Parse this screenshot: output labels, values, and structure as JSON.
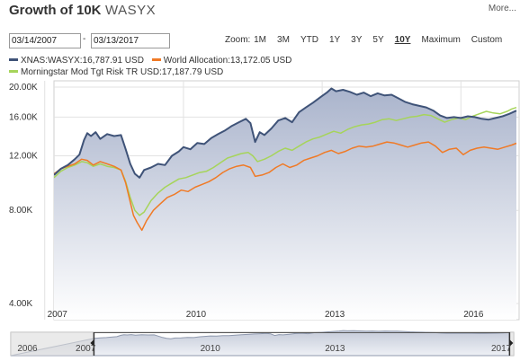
{
  "header": {
    "title": "Growth of 10K",
    "ticker": "WASYX",
    "more_label": "More..."
  },
  "controls": {
    "start_date": "03/14/2007",
    "end_date": "03/13/2017",
    "separator": "-",
    "zoom_label": "Zoom:",
    "zoom_options": [
      "1M",
      "3M",
      "YTD",
      "1Y",
      "3Y",
      "5Y",
      "10Y",
      "Maximum",
      "Custom"
    ],
    "active_zoom": "10Y"
  },
  "colors": {
    "wasyx": "#3f5378",
    "world_allocation": "#f07a26",
    "morningstar": "#a6d45a",
    "area_top": "#aab4cc",
    "area_bottom": "#ffffff",
    "grid": "#e2e2e2"
  },
  "chart_data": {
    "type": "line",
    "legend": [
      "XNAS:WASYX:16,787.91 USD",
      "World Allocation:13,172.05 USD",
      "Morningstar Mod Tgt Risk TR USD:17,187.79 USD"
    ],
    "y_ticks": [
      "20.00K",
      "16.00K",
      "12.00K",
      "8.00K",
      "4.00K"
    ],
    "y_tick_values": [
      20000,
      16000,
      12000,
      8000,
      4000
    ],
    "x_ticks": [
      "2007",
      "2010",
      "2013",
      "2016"
    ],
    "x_tick_values": [
      2007.0,
      2010.0,
      2013.0,
      2016.0
    ],
    "xlim": [
      2007.2,
      2017.2
    ],
    "ylim": [
      4000,
      20000
    ],
    "y_scale": "log",
    "grid": true,
    "series": [
      {
        "name": "XNAS:WASYX",
        "points": [
          [
            2007.2,
            10400
          ],
          [
            2007.35,
            10900
          ],
          [
            2007.5,
            11200
          ],
          [
            2007.65,
            11700
          ],
          [
            2007.75,
            12100
          ],
          [
            2007.85,
            13500
          ],
          [
            2007.92,
            14200
          ],
          [
            2008.0,
            13900
          ],
          [
            2008.1,
            14300
          ],
          [
            2008.2,
            13600
          ],
          [
            2008.35,
            14100
          ],
          [
            2008.5,
            13900
          ],
          [
            2008.65,
            14000
          ],
          [
            2008.75,
            12600
          ],
          [
            2008.85,
            11300
          ],
          [
            2008.95,
            10500
          ],
          [
            2009.05,
            10200
          ],
          [
            2009.15,
            10800
          ],
          [
            2009.3,
            11000
          ],
          [
            2009.45,
            11300
          ],
          [
            2009.6,
            11200
          ],
          [
            2009.75,
            12000
          ],
          [
            2009.9,
            12400
          ],
          [
            2010.0,
            12800
          ],
          [
            2010.15,
            12600
          ],
          [
            2010.3,
            13200
          ],
          [
            2010.45,
            13100
          ],
          [
            2010.6,
            13700
          ],
          [
            2010.75,
            14100
          ],
          [
            2010.9,
            14500
          ],
          [
            2011.05,
            15000
          ],
          [
            2011.2,
            15400
          ],
          [
            2011.35,
            15800
          ],
          [
            2011.45,
            15300
          ],
          [
            2011.55,
            13300
          ],
          [
            2011.65,
            14300
          ],
          [
            2011.75,
            14000
          ],
          [
            2011.9,
            14700
          ],
          [
            2012.05,
            15600
          ],
          [
            2012.2,
            15900
          ],
          [
            2012.35,
            15400
          ],
          [
            2012.5,
            16600
          ],
          [
            2012.65,
            17200
          ],
          [
            2012.8,
            17800
          ],
          [
            2012.95,
            18500
          ],
          [
            2013.1,
            19200
          ],
          [
            2013.2,
            19800
          ],
          [
            2013.3,
            19400
          ],
          [
            2013.45,
            19600
          ],
          [
            2013.6,
            19300
          ],
          [
            2013.75,
            18900
          ],
          [
            2013.9,
            19200
          ],
          [
            2014.05,
            18700
          ],
          [
            2014.2,
            19100
          ],
          [
            2014.35,
            18800
          ],
          [
            2014.5,
            18900
          ],
          [
            2014.65,
            18400
          ],
          [
            2014.8,
            17900
          ],
          [
            2014.95,
            17600
          ],
          [
            2015.1,
            17400
          ],
          [
            2015.25,
            17200
          ],
          [
            2015.4,
            16800
          ],
          [
            2015.55,
            16200
          ],
          [
            2015.7,
            15900
          ],
          [
            2015.85,
            16000
          ],
          [
            2016.0,
            15900
          ],
          [
            2016.15,
            16100
          ],
          [
            2016.3,
            16000
          ],
          [
            2016.45,
            15800
          ],
          [
            2016.6,
            15700
          ],
          [
            2016.75,
            15900
          ],
          [
            2016.9,
            16100
          ],
          [
            2017.05,
            16400
          ],
          [
            2017.2,
            16790
          ]
        ]
      },
      {
        "name": "World Allocation",
        "points": [
          [
            2007.2,
            10500
          ],
          [
            2007.35,
            10900
          ],
          [
            2007.5,
            11100
          ],
          [
            2007.65,
            11300
          ],
          [
            2007.8,
            11700
          ],
          [
            2007.92,
            11600
          ],
          [
            2008.05,
            11200
          ],
          [
            2008.2,
            11500
          ],
          [
            2008.35,
            11300
          ],
          [
            2008.5,
            11100
          ],
          [
            2008.65,
            10800
          ],
          [
            2008.75,
            9800
          ],
          [
            2008.85,
            8500
          ],
          [
            2008.92,
            7700
          ],
          [
            2009.0,
            7300
          ],
          [
            2009.1,
            6900
          ],
          [
            2009.2,
            7400
          ],
          [
            2009.35,
            8000
          ],
          [
            2009.5,
            8400
          ],
          [
            2009.65,
            8800
          ],
          [
            2009.8,
            9000
          ],
          [
            2009.95,
            9300
          ],
          [
            2010.1,
            9200
          ],
          [
            2010.25,
            9500
          ],
          [
            2010.4,
            9700
          ],
          [
            2010.55,
            9900
          ],
          [
            2010.7,
            10200
          ],
          [
            2010.85,
            10600
          ],
          [
            2011.0,
            10900
          ],
          [
            2011.15,
            11100
          ],
          [
            2011.3,
            11200
          ],
          [
            2011.45,
            11000
          ],
          [
            2011.55,
            10300
          ],
          [
            2011.7,
            10400
          ],
          [
            2011.85,
            10600
          ],
          [
            2012.0,
            11000
          ],
          [
            2012.15,
            11300
          ],
          [
            2012.3,
            11000
          ],
          [
            2012.45,
            11200
          ],
          [
            2012.6,
            11600
          ],
          [
            2012.75,
            11800
          ],
          [
            2012.9,
            12000
          ],
          [
            2013.05,
            12300
          ],
          [
            2013.2,
            12500
          ],
          [
            2013.35,
            12200
          ],
          [
            2013.5,
            12400
          ],
          [
            2013.65,
            12700
          ],
          [
            2013.8,
            12900
          ],
          [
            2013.95,
            12800
          ],
          [
            2014.1,
            12900
          ],
          [
            2014.25,
            13100
          ],
          [
            2014.4,
            13300
          ],
          [
            2014.55,
            13200
          ],
          [
            2014.7,
            13000
          ],
          [
            2014.85,
            12800
          ],
          [
            2015.0,
            13000
          ],
          [
            2015.15,
            13200
          ],
          [
            2015.3,
            13300
          ],
          [
            2015.45,
            12900
          ],
          [
            2015.6,
            12300
          ],
          [
            2015.75,
            12600
          ],
          [
            2015.9,
            12700
          ],
          [
            2016.05,
            12100
          ],
          [
            2016.2,
            12500
          ],
          [
            2016.35,
            12700
          ],
          [
            2016.5,
            12800
          ],
          [
            2016.65,
            12700
          ],
          [
            2016.8,
            12600
          ],
          [
            2016.95,
            12800
          ],
          [
            2017.1,
            13000
          ],
          [
            2017.2,
            13172
          ]
        ]
      },
      {
        "name": "Morningstar Mod Tgt Risk TR USD",
        "points": [
          [
            2007.2,
            10200
          ],
          [
            2007.35,
            10700
          ],
          [
            2007.5,
            11000
          ],
          [
            2007.65,
            11200
          ],
          [
            2007.8,
            11500
          ],
          [
            2007.92,
            11400
          ],
          [
            2008.05,
            11100
          ],
          [
            2008.2,
            11300
          ],
          [
            2008.35,
            11100
          ],
          [
            2008.5,
            11000
          ],
          [
            2008.65,
            10800
          ],
          [
            2008.75,
            9900
          ],
          [
            2008.85,
            8800
          ],
          [
            2008.95,
            8000
          ],
          [
            2009.05,
            7700
          ],
          [
            2009.15,
            7900
          ],
          [
            2009.3,
            8600
          ],
          [
            2009.45,
            9100
          ],
          [
            2009.6,
            9500
          ],
          [
            2009.75,
            9800
          ],
          [
            2009.9,
            10100
          ],
          [
            2010.05,
            10200
          ],
          [
            2010.2,
            10400
          ],
          [
            2010.35,
            10600
          ],
          [
            2010.5,
            10700
          ],
          [
            2010.65,
            11000
          ],
          [
            2010.8,
            11400
          ],
          [
            2010.95,
            11800
          ],
          [
            2011.1,
            12000
          ],
          [
            2011.25,
            12200
          ],
          [
            2011.4,
            12300
          ],
          [
            2011.5,
            12000
          ],
          [
            2011.6,
            11500
          ],
          [
            2011.75,
            11700
          ],
          [
            2011.9,
            12000
          ],
          [
            2012.05,
            12400
          ],
          [
            2012.2,
            12700
          ],
          [
            2012.35,
            12500
          ],
          [
            2012.5,
            12900
          ],
          [
            2012.65,
            13300
          ],
          [
            2012.8,
            13600
          ],
          [
            2012.95,
            13800
          ],
          [
            2013.1,
            14100
          ],
          [
            2013.25,
            14400
          ],
          [
            2013.4,
            14200
          ],
          [
            2013.55,
            14600
          ],
          [
            2013.7,
            14900
          ],
          [
            2013.85,
            15100
          ],
          [
            2014.0,
            15200
          ],
          [
            2014.15,
            15400
          ],
          [
            2014.3,
            15700
          ],
          [
            2014.45,
            15800
          ],
          [
            2014.6,
            15600
          ],
          [
            2014.75,
            15800
          ],
          [
            2014.9,
            16000
          ],
          [
            2015.05,
            16100
          ],
          [
            2015.2,
            16300
          ],
          [
            2015.35,
            16200
          ],
          [
            2015.5,
            15800
          ],
          [
            2015.65,
            15400
          ],
          [
            2015.8,
            15700
          ],
          [
            2015.95,
            15900
          ],
          [
            2016.1,
            15700
          ],
          [
            2016.25,
            16100
          ],
          [
            2016.4,
            16400
          ],
          [
            2016.55,
            16700
          ],
          [
            2016.7,
            16500
          ],
          [
            2016.85,
            16400
          ],
          [
            2017.0,
            16700
          ],
          [
            2017.1,
            17000
          ],
          [
            2017.2,
            17188
          ]
        ]
      }
    ],
    "navigator": {
      "labels": [
        "2006",
        "2007",
        "2010",
        "2013",
        "2017"
      ],
      "label_values": [
        2005.6,
        2007.0,
        2010.0,
        2013.0,
        2017.0
      ],
      "xlim": [
        2005.2,
        2017.3
      ],
      "selection": [
        2007.2,
        2017.2
      ]
    }
  }
}
